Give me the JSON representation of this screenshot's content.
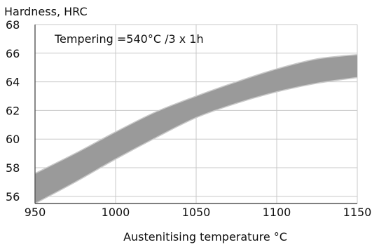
{
  "chart_data": {
    "type": "area",
    "ylabel": "Hardness, HRC",
    "xlabel": "Austenitising temperature °C",
    "annotation": "Tempering =540°C /3 x 1h",
    "xlim": [
      950,
      1150
    ],
    "ylim": [
      55.5,
      68
    ],
    "x_ticks": [
      950,
      1000,
      1050,
      1100,
      1150
    ],
    "y_ticks": [
      56,
      58,
      60,
      62,
      64,
      66,
      68
    ],
    "grid": true,
    "band": {
      "x": [
        950,
        975,
        1000,
        1025,
        1050,
        1075,
        1100,
        1125,
        1150
      ],
      "upper": [
        57.6,
        59.0,
        60.5,
        61.9,
        63.0,
        64.0,
        64.9,
        65.6,
        65.9
      ],
      "lower": [
        55.5,
        57.0,
        58.6,
        60.1,
        61.5,
        62.5,
        63.3,
        63.9,
        64.3
      ]
    },
    "colors": {
      "band_fill": "#9a9a9a",
      "band_edge": "#c8c8c8",
      "grid": "#c8c8c8",
      "axis": "#555555"
    }
  }
}
